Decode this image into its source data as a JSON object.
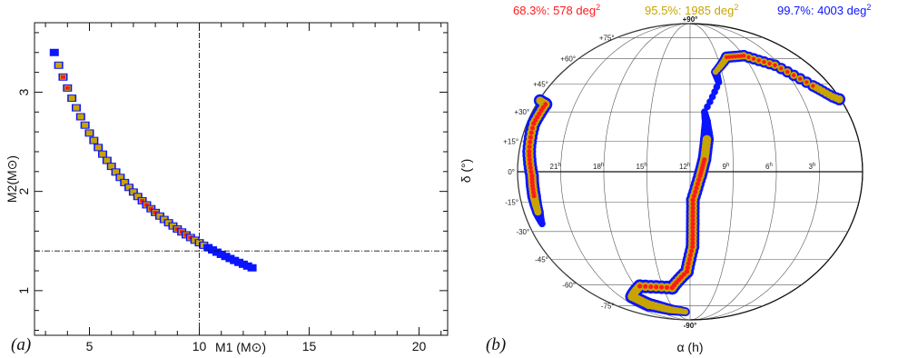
{
  "chart_data": [
    {
      "type": "scatter",
      "panel_label": "(a)",
      "xlabel": "M1 (M⊙)",
      "ylabel": "M2(M⊙)",
      "xlim": [
        2.5,
        21.3
      ],
      "ylim": [
        0.55,
        3.7
      ],
      "xticks": [
        5,
        10,
        15,
        20
      ],
      "yticks": [
        1,
        2,
        3
      ],
      "reference_lines": {
        "x": 10,
        "y": 1.4
      },
      "colors": {
        "68.3%": "#ff1a1a",
        "95.5%": "#c8a400",
        "99.7%": "#0a14ff"
      },
      "band": {
        "x_start": 3.4,
        "x_end": 12.4,
        "y_start": 3.4,
        "y_end": 1.23,
        "red_segments": [
          [
            3.8,
            4.05
          ],
          [
            7.3,
            8.2
          ],
          [
            8.9,
            9.7
          ]
        ],
        "gold_range": [
          3.55,
          10.2
        ],
        "blue_only_tail": [
          10.2,
          12.4
        ]
      }
    },
    {
      "type": "scatter",
      "projection": "mollweide",
      "panel_label": "(b)",
      "xlabel": "α (h)",
      "ylabel": "δ (°)",
      "legend": [
        {
          "label": "68.3%: 578 deg",
          "exp": "2",
          "color": "#ff1a1a"
        },
        {
          "label": "95.5%: 1985 deg",
          "exp": "2",
          "color": "#c8a400"
        },
        {
          "label": "99.7%: 4003 deg",
          "exp": "2",
          "color": "#0a14ff"
        }
      ],
      "ra_labels": [
        {
          "h": 21,
          "text": "21",
          "sup": "h"
        },
        {
          "h": 18,
          "text": "18",
          "sup": "h"
        },
        {
          "h": 15,
          "text": "15",
          "sup": "h"
        },
        {
          "h": 12,
          "text": "12",
          "sup": "h"
        },
        {
          "h": 9,
          "text": "9",
          "sup": "h"
        },
        {
          "h": 6,
          "text": "6",
          "sup": "h"
        },
        {
          "h": 3,
          "text": "3",
          "sup": "h"
        }
      ],
      "dec_labels": [
        {
          "d": 90,
          "text": "+90°"
        },
        {
          "d": 75,
          "text": "+75°"
        },
        {
          "d": 60,
          "text": "+60°"
        },
        {
          "d": 45,
          "text": "+45°"
        },
        {
          "d": 30,
          "text": "+30°"
        },
        {
          "d": 15,
          "text": "+15°"
        },
        {
          "d": 0,
          "text": "0°"
        },
        {
          "d": -15,
          "text": "-15°"
        },
        {
          "d": -30,
          "text": "-30°"
        },
        {
          "d": -45,
          "text": "-45°"
        },
        {
          "d": -60,
          "text": "-60°"
        },
        {
          "d": -75,
          "text": "-75°"
        },
        {
          "d": -90,
          "text": "-90°"
        }
      ],
      "ring": [
        {
          "ra": 13.0,
          "dec": -80,
          "hw": 4,
          "r": false,
          "g": true
        },
        {
          "ra": 16.0,
          "dec": -78,
          "hw": 5,
          "r": false,
          "g": true
        },
        {
          "ra": 18.5,
          "dec": -74,
          "hw": 6,
          "r": false,
          "g": true
        },
        {
          "ra": 19.5,
          "dec": -68,
          "hw": 6,
          "r": false,
          "g": true
        },
        {
          "ra": 17.5,
          "dec": -61,
          "hw": 6,
          "r": false,
          "g": false
        },
        {
          "ra": 14.0,
          "dec": -62,
          "hw": 6,
          "r": true,
          "g": true
        },
        {
          "ra": 12.3,
          "dec": -52,
          "hw": 6,
          "r": true,
          "g": true
        },
        {
          "ra": 11.8,
          "dec": -38,
          "hw": 6,
          "r": false,
          "g": true
        },
        {
          "ra": 11.8,
          "dec": -26,
          "hw": 6,
          "r": true,
          "g": true
        },
        {
          "ra": 11.8,
          "dec": -14,
          "hw": 6,
          "r": true,
          "g": true
        },
        {
          "ra": 11.3,
          "dec": -2,
          "hw": 6,
          "r": true,
          "g": true
        },
        {
          "ra": 11.0,
          "dec": 6,
          "hw": 6,
          "r": false,
          "g": true
        },
        {
          "ra": 10.8,
          "dec": 16,
          "hw": 6,
          "r": false,
          "g": false
        },
        {
          "ra": 10.8,
          "dec": 25,
          "hw": 4,
          "r": false,
          "g": false
        },
        {
          "ra": 10.9,
          "dec": 30,
          "hw": 3,
          "r": false,
          "g": false
        },
        {
          "ra": 9.5,
          "dec": 46,
          "hw": 3,
          "r": false,
          "g": false
        },
        {
          "ra": 9.6,
          "dec": 52,
          "hw": 4,
          "r": false,
          "g": false
        },
        {
          "ra": 8.0,
          "dec": 61,
          "hw": 5,
          "r": false,
          "g": true
        },
        {
          "ra": 6.0,
          "dec": 62,
          "hw": 5,
          "r": true,
          "g": true
        },
        {
          "ra": 3.5,
          "dec": 56,
          "hw": 5,
          "r": true,
          "g": true
        },
        {
          "ra": 1.5,
          "dec": 44,
          "hw": 5,
          "r": false,
          "g": true
        },
        {
          "ra": 0.5,
          "dec": 38,
          "hw": 5,
          "r": false,
          "g": true
        },
        {
          "ra": 23.3,
          "dec": 34,
          "hw": 6,
          "r": false,
          "g": true
        },
        {
          "ra": 23.5,
          "dec": 24,
          "hw": 6,
          "r": true,
          "g": true
        },
        {
          "ra": 23.3,
          "dec": 10,
          "hw": 6,
          "r": true,
          "g": true
        },
        {
          "ra": 23.0,
          "dec": -2,
          "hw": 6,
          "r": true,
          "g": true
        },
        {
          "ra": 23.0,
          "dec": -12,
          "hw": 6,
          "r": false,
          "g": true
        },
        {
          "ra": 23.0,
          "dec": -20,
          "hw": 5,
          "r": false,
          "g": false
        },
        {
          "ra": 23.0,
          "dec": -26,
          "hw": 3,
          "r": false,
          "g": false
        }
      ]
    }
  ]
}
